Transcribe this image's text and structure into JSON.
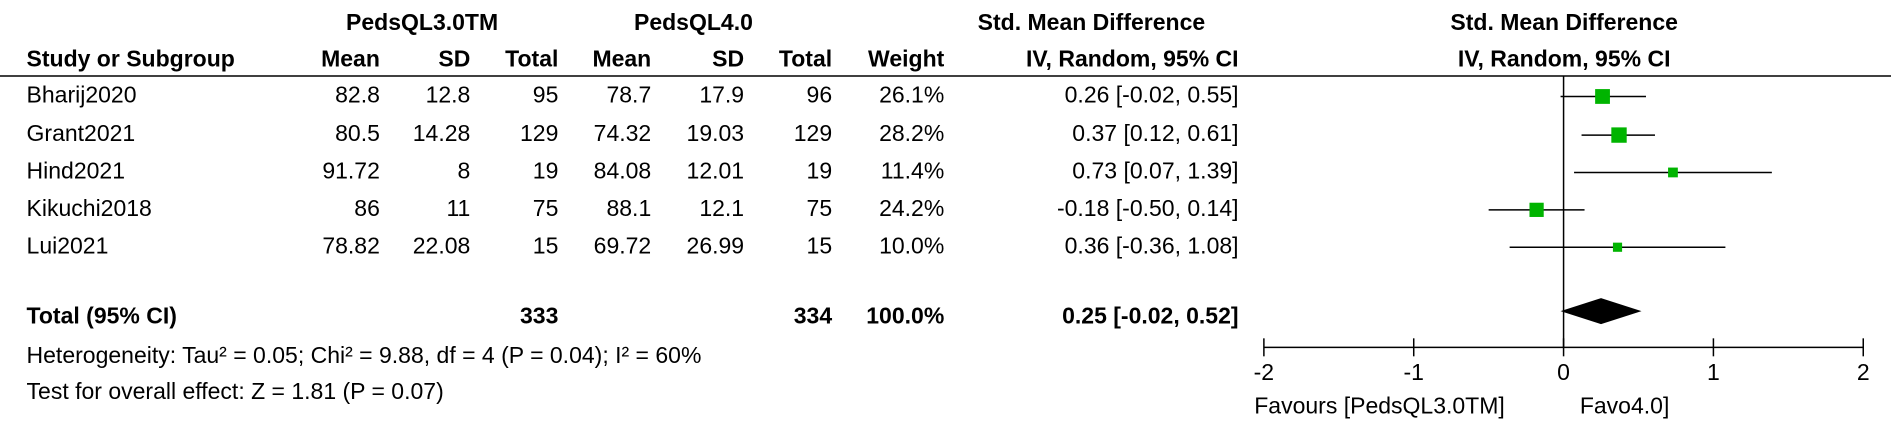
{
  "chart_data": {
    "type": "forest",
    "group_headers": [
      "PedsQL3.0TM",
      "PedsQL4.0"
    ],
    "column_headers": [
      "Study or Subgroup",
      "Mean",
      "SD",
      "Total",
      "Mean",
      "SD",
      "Total",
      "Weight"
    ],
    "effect_header": "Std. Mean Difference",
    "effect_subheader": "IV, Random, 95% CI",
    "plot_header": "Std. Mean Difference",
    "plot_subheader": "IV, Random, 95% CI",
    "studies": [
      {
        "name": "Bharij2020",
        "mean1": 82.8,
        "sd1": 12.8,
        "n1": 95,
        "mean2": 78.7,
        "sd2": 17.9,
        "n2": 96,
        "weight": 26.1,
        "weight_label": "26.1%",
        "smd": 0.26,
        "ci_low": -0.02,
        "ci_high": 0.55,
        "ci_label": "0.26 [-0.02, 0.55]"
      },
      {
        "name": "Grant2021",
        "mean1": 80.5,
        "sd1": 14.28,
        "n1": 129,
        "mean2": 74.32,
        "sd2": 19.03,
        "n2": 129,
        "weight": 28.2,
        "weight_label": "28.2%",
        "smd": 0.37,
        "ci_low": 0.12,
        "ci_high": 0.61,
        "ci_label": "0.37 [0.12, 0.61]"
      },
      {
        "name": "Hind2021",
        "mean1": 91.72,
        "sd1": 8,
        "n1": 19,
        "mean2": 84.08,
        "sd2": 12.01,
        "n2": 19,
        "weight": 11.4,
        "weight_label": "11.4%",
        "smd": 0.73,
        "ci_low": 0.07,
        "ci_high": 1.39,
        "ci_label": "0.73 [0.07, 1.39]"
      },
      {
        "name": "Kikuchi2018",
        "mean1": 86,
        "sd1": 11,
        "n1": 75,
        "mean2": 88.1,
        "sd2": 12.1,
        "n2": 75,
        "weight": 24.2,
        "weight_label": "24.2%",
        "smd": -0.18,
        "ci_low": -0.5,
        "ci_high": 0.14,
        "ci_label": "-0.18 [-0.50, 0.14]"
      },
      {
        "name": "Lui2021",
        "mean1": 78.82,
        "sd1": 22.08,
        "n1": 15,
        "mean2": 69.72,
        "sd2": 26.99,
        "n2": 15,
        "weight": 10,
        "weight_label": "10.0%",
        "smd": 0.36,
        "ci_low": -0.36,
        "ci_high": 1.08,
        "ci_label": "0.36 [-0.36, 1.08]"
      }
    ],
    "total": {
      "name": "Total (95% CI)",
      "n1": 333,
      "n2": 334,
      "weight": 100,
      "weight_label": "100.0%",
      "smd": 0.25,
      "ci_low": -0.02,
      "ci_high": 0.52,
      "ci_label": "0.25 [-0.02, 0.52]"
    },
    "heterogeneity": "Heterogeneity: Tau² = 0.05; Chi² = 9.88, df = 4 (P = 0.04); I² = 60%",
    "overall_effect": "Test for overall effect: Z = 1.81 (P = 0.07)",
    "xlim": [
      -2,
      2
    ],
    "xticks": [
      -2,
      -1,
      0,
      1,
      2
    ],
    "favours_left": "Favours [PedsQL3.0TM]",
    "favours_right": "Favo4.0]",
    "marker_color": "#00b400",
    "diamond_color": "#000000"
  }
}
